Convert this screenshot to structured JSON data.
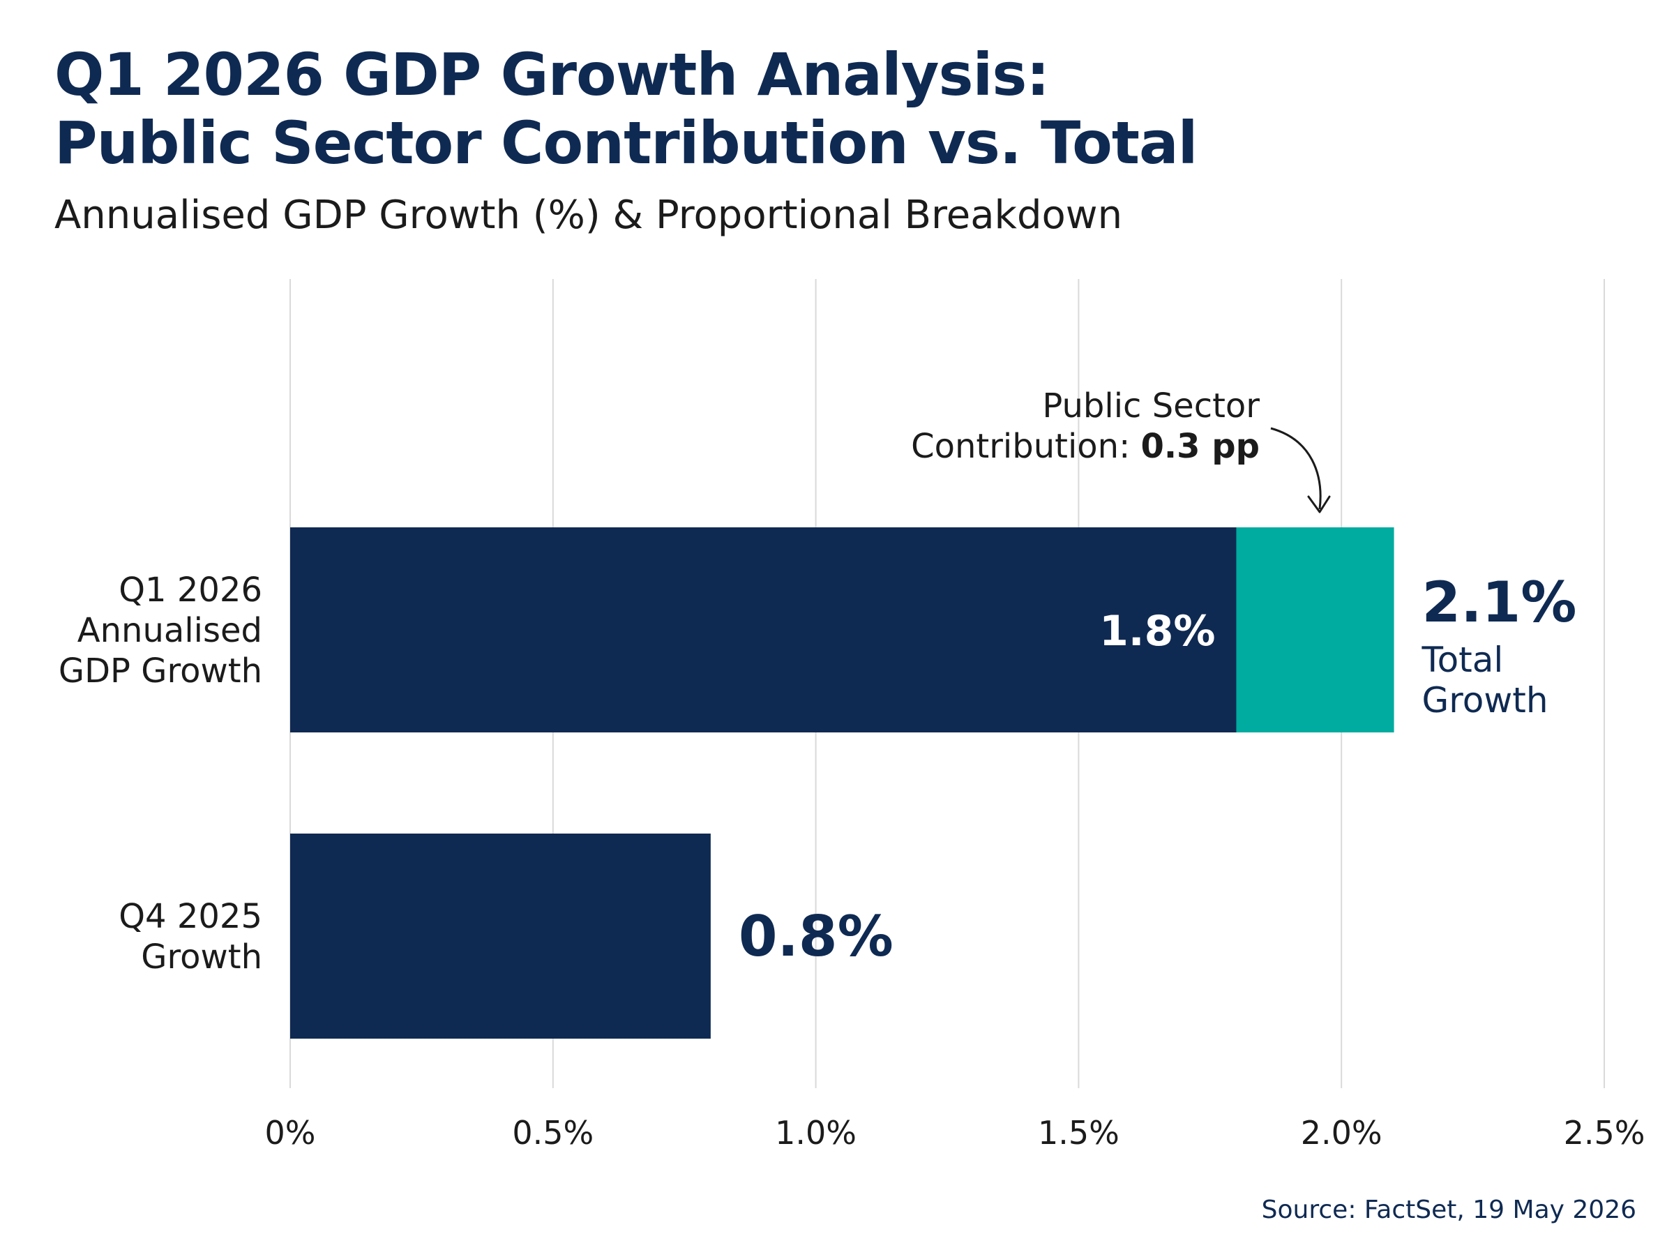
{
  "header": {
    "title_line1": "Q1 2026 GDP Growth Analysis:",
    "title_line2": "Public Sector Contribution vs. Total",
    "subtitle": "Annualised GDP Growth (%) & Proportional Breakdown"
  },
  "chart_data": {
    "type": "bar",
    "orientation": "horizontal",
    "stacked": true,
    "categories": [
      [
        "Q1 2026",
        "Annualised",
        "GDP Growth"
      ],
      [
        "Q4 2025",
        "Growth"
      ]
    ],
    "series": [
      {
        "values": [
          1.8,
          0.8
        ],
        "color": "#0f2a52"
      },
      {
        "values": [
          0.3,
          0
        ],
        "color": "#00ab9f"
      }
    ],
    "segment_labels": [
      "1.8%",
      ""
    ],
    "totals": [
      2.1,
      0.8
    ],
    "total_labels": [
      "2.1%",
      "0.8%"
    ],
    "total_sublabel": [
      "Total",
      "Growth"
    ],
    "annotation": {
      "line1": "Public Sector",
      "line2_prefix": "Contribution: ",
      "line2_bold": "0.3 pp"
    },
    "xlim": [
      0,
      2.5
    ],
    "x_ticks": [
      0,
      0.5,
      1.0,
      1.5,
      2.0,
      2.5
    ],
    "x_tick_labels": [
      "0%",
      "0.5%",
      "1.0%",
      "1.5%",
      "2.0%",
      "2.5%"
    ],
    "grid": true,
    "legend": "none"
  },
  "footer": {
    "source": "Source: FactSet, 19 May 2026"
  },
  "colors": {
    "navy": "#0f2a52",
    "teal": "#00ab9f",
    "grid": "#d9d9d9",
    "text_dark": "#1b1b1b"
  }
}
